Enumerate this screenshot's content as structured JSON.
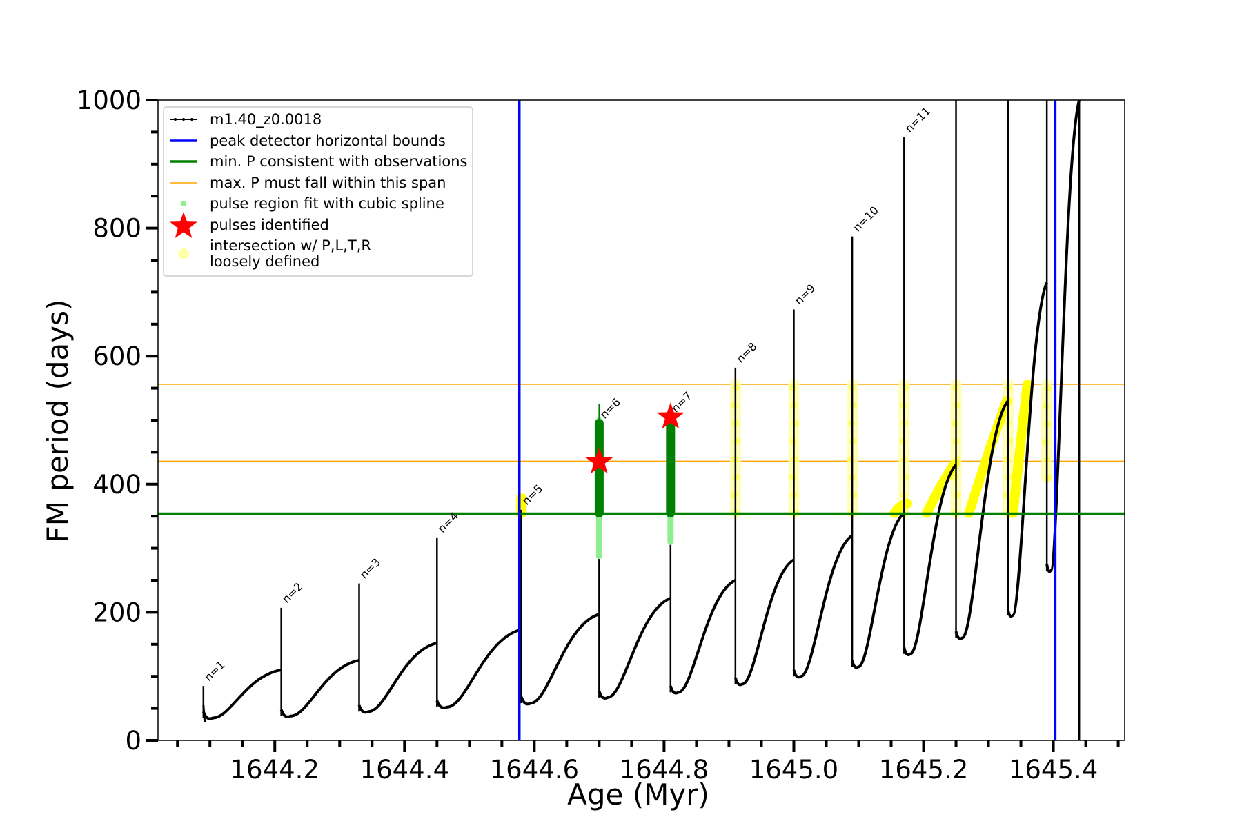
{
  "chart_data": {
    "type": "line",
    "xlabel": "Age (Myr)",
    "ylabel": "FM period (days)",
    "xlim": [
      1644.02,
      1645.51
    ],
    "ylim": [
      0,
      1000
    ],
    "x_ticks": [
      1644.2,
      1644.4,
      1644.6,
      1644.8,
      1645.0,
      1645.2,
      1645.4
    ],
    "x_tick_labels": [
      "1644.2",
      "1644.4",
      "1644.6",
      "1644.8",
      "1645.0",
      "1645.2",
      "1645.4"
    ],
    "y_ticks": [
      0,
      200,
      400,
      600,
      800,
      1000
    ],
    "y_tick_labels": [
      "0",
      "200",
      "400",
      "600",
      "800",
      "1000"
    ],
    "grid": false,
    "legend_position": "upper-left",
    "series": [
      {
        "name": "m1.40_z0.0018",
        "color": "#000000",
        "pulses": [
          {
            "label": "n=1",
            "age": 1644.09,
            "spike": 85,
            "trough": 35,
            "peak_before": null
          },
          {
            "label": "n=2",
            "age": 1644.21,
            "spike": 207,
            "trough": 38,
            "peak_before": 110
          },
          {
            "label": "n=3",
            "age": 1644.33,
            "spike": 245,
            "trough": 45,
            "peak_before": 125
          },
          {
            "label": "n=4",
            "age": 1644.45,
            "spike": 317,
            "trough": 52,
            "peak_before": 152
          },
          {
            "label": "n=5",
            "age": 1644.58,
            "spike": 360,
            "trough": 58,
            "peak_before": 173
          },
          {
            "label": "n=6",
            "age": 1644.7,
            "spike": 495,
            "trough": 67,
            "peak_before": 197
          },
          {
            "label": "n=7",
            "age": 1644.81,
            "spike": 505,
            "trough": 75,
            "peak_before": 222
          },
          {
            "label": "n=8",
            "age": 1644.91,
            "spike": 582,
            "trough": 88,
            "peak_before": 250
          },
          {
            "label": "n=9",
            "age": 1645.0,
            "spike": 673,
            "trough": 100,
            "peak_before": 282
          },
          {
            "label": "n=10",
            "age": 1645.09,
            "spike": 787,
            "trough": 115,
            "peak_before": 320
          },
          {
            "label": "n=11",
            "age": 1645.17,
            "spike": 942,
            "trough": 135,
            "peak_before": 355
          },
          {
            "label": "",
            "age": 1645.25,
            "spike": 1000,
            "trough": 160,
            "peak_before": 430
          },
          {
            "label": "",
            "age": 1645.33,
            "spike": 1000,
            "trough": 195,
            "peak_before": 530
          },
          {
            "label": "",
            "age": 1645.39,
            "spike": 1000,
            "trough": 265,
            "peak_before": 715
          },
          {
            "label": "",
            "age": 1645.44,
            "spike": 1000,
            "trough": 0,
            "peak_before": 1000
          }
        ]
      },
      {
        "name": "peak detector horizontal bounds",
        "color": "#0000ff",
        "type": "vline",
        "x": [
          1644.577,
          1645.403
        ]
      },
      {
        "name": "min. P consistent with observations",
        "color": "#008000",
        "type": "hline",
        "y": 354
      },
      {
        "name": "max. P must fall within this span",
        "color": "#ffa500",
        "type": "hline",
        "y": [
          436,
          556
        ]
      },
      {
        "name": "pulse region fit with cubic spline",
        "color": "#90ee90",
        "type": "scatter",
        "regions": [
          {
            "x": 1644.7,
            "y": [
              288,
              500
            ]
          },
          {
            "x": 1644.81,
            "y": [
              310,
              500
            ]
          }
        ]
      },
      {
        "name": "pulses identified",
        "color": "#ff0000",
        "type": "marker",
        "points": [
          {
            "x": 1644.7,
            "y": 435
          },
          {
            "x": 1644.81,
            "y": 505
          }
        ]
      },
      {
        "name": "intersection w/ P,L,T,R\nloosely defined",
        "color": "#ffff00",
        "type": "scatter",
        "regions": [
          {
            "x": 1644.58,
            "y": [
              355,
              378
            ]
          },
          {
            "x": 1644.91,
            "y": [
              355,
              556
            ]
          },
          {
            "x": 1645.0,
            "y": [
              355,
              556
            ]
          },
          {
            "x": 1645.09,
            "y": [
              355,
              556
            ]
          },
          {
            "x": 1645.17,
            "y": [
              355,
              556
            ]
          },
          {
            "x": 1645.25,
            "y": [
              355,
              556
            ]
          },
          {
            "x": 1645.33,
            "y": [
              355,
              556
            ]
          },
          {
            "x": 1645.39,
            "y": [
              410,
              556
            ]
          }
        ],
        "ramps": [
          {
            "x": [
              1645.155,
              1645.175
            ],
            "y": [
              355,
              370
            ]
          },
          {
            "x": [
              1645.205,
              1645.248
            ],
            "y": [
              355,
              432
            ]
          },
          {
            "x": [
              1645.27,
              1645.328
            ],
            "y": [
              355,
              530
            ]
          },
          {
            "x": [
              1645.338,
              1645.36
            ],
            "y": [
              355,
              556
            ]
          }
        ]
      }
    ],
    "pulse_labels": [
      "n=1",
      "n=2",
      "n=3",
      "n=4",
      "n=5",
      "n=6",
      "n=7",
      "n=8",
      "n=9",
      "n=10",
      "n=11"
    ],
    "legend": [
      {
        "label": "m1.40_z0.0018",
        "marker": "black-line"
      },
      {
        "label": "peak detector horizontal bounds",
        "marker": "blue-line"
      },
      {
        "label": "min. P consistent with observations",
        "marker": "green-line"
      },
      {
        "label": "max. P must fall within this span",
        "marker": "orange-line"
      },
      {
        "label": "pulse region fit with cubic spline",
        "marker": "lightgreen-dot"
      },
      {
        "label": "pulses identified",
        "marker": "red-star"
      },
      {
        "label": "intersection w/ P,L,T,R",
        "label2": "loosely defined",
        "marker": "yellow-dot"
      }
    ]
  },
  "colors": {
    "track": "#000000",
    "blue": "#0000ff",
    "green": "#008000",
    "orange": "#ffa500",
    "lightgreen": "#90ee90",
    "red": "#ff0000",
    "yellow": "#ffff00",
    "paleyellow": "#ffffaa"
  }
}
